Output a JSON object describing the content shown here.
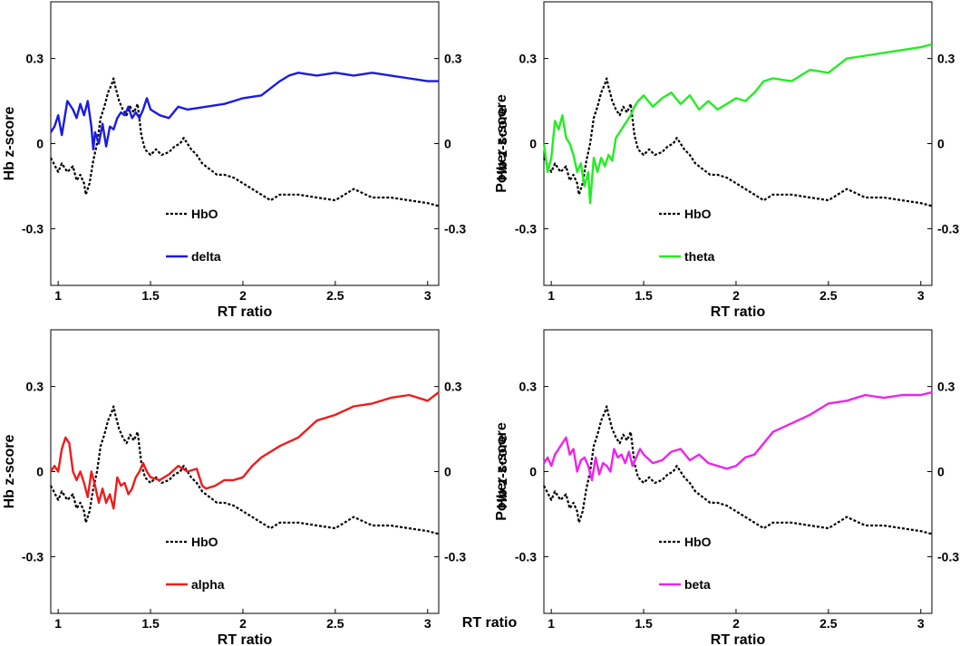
{
  "stray_label": "RT ratio",
  "chart_data": [
    {
      "type": "line",
      "xlabel": "RT ratio",
      "ylabel_left": "Hb z-score",
      "ylabel_right": "Power z-score",
      "xlim": [
        0.96,
        3.06
      ],
      "ylim": [
        -0.5,
        0.5
      ],
      "xticks": [
        1,
        1.5,
        2,
        2.5,
        3
      ],
      "yticks": [
        -0.3,
        0,
        0.3
      ],
      "series": [
        {
          "name": "HbO",
          "color": "#000000",
          "dash": true,
          "x": [
            0.96,
            1.0,
            1.02,
            1.05,
            1.08,
            1.1,
            1.12,
            1.14,
            1.15,
            1.17,
            1.19,
            1.21,
            1.23,
            1.25,
            1.27,
            1.29,
            1.3,
            1.31,
            1.33,
            1.35,
            1.37,
            1.39,
            1.41,
            1.43,
            1.45,
            1.47,
            1.5,
            1.53,
            1.56,
            1.6,
            1.63,
            1.66,
            1.68,
            1.7,
            1.72,
            1.75,
            1.78,
            1.82,
            1.86,
            1.9,
            1.95,
            2.0,
            2.05,
            2.1,
            2.15,
            2.2,
            2.3,
            2.4,
            2.5,
            2.6,
            2.7,
            2.8,
            2.9,
            3.0,
            3.06
          ],
          "y": [
            -0.05,
            -0.1,
            -0.07,
            -0.1,
            -0.08,
            -0.13,
            -0.11,
            -0.14,
            -0.18,
            -0.14,
            -0.06,
            0.0,
            0.09,
            0.13,
            0.18,
            0.21,
            0.23,
            0.2,
            0.15,
            0.12,
            0.1,
            0.13,
            0.11,
            0.14,
            0.03,
            -0.02,
            -0.04,
            -0.02,
            -0.04,
            -0.03,
            -0.01,
            0.0,
            0.02,
            0.0,
            -0.02,
            -0.04,
            -0.07,
            -0.09,
            -0.11,
            -0.11,
            -0.12,
            -0.14,
            -0.16,
            -0.18,
            -0.2,
            -0.18,
            -0.18,
            -0.19,
            -0.2,
            -0.16,
            -0.19,
            -0.19,
            -0.2,
            -0.21,
            -0.22
          ]
        },
        {
          "name": "delta",
          "color": "#1a1ae6",
          "dash": false,
          "x": [
            0.96,
            0.98,
            1.0,
            1.02,
            1.05,
            1.08,
            1.1,
            1.12,
            1.14,
            1.16,
            1.18,
            1.19,
            1.2,
            1.22,
            1.24,
            1.26,
            1.28,
            1.3,
            1.32,
            1.34,
            1.36,
            1.38,
            1.4,
            1.42,
            1.44,
            1.46,
            1.48,
            1.5,
            1.55,
            1.6,
            1.65,
            1.7,
            1.8,
            1.9,
            2.0,
            2.1,
            2.2,
            2.25,
            2.3,
            2.4,
            2.5,
            2.6,
            2.7,
            2.8,
            2.9,
            3.0,
            3.06
          ],
          "y": [
            0.04,
            0.06,
            0.1,
            0.03,
            0.15,
            0.12,
            0.09,
            0.14,
            0.1,
            0.15,
            0.06,
            -0.02,
            0.04,
            0.0,
            0.07,
            -0.01,
            0.06,
            0.05,
            0.09,
            0.11,
            0.1,
            0.13,
            0.09,
            0.11,
            0.09,
            0.12,
            0.16,
            0.12,
            0.1,
            0.09,
            0.13,
            0.12,
            0.13,
            0.14,
            0.16,
            0.17,
            0.22,
            0.24,
            0.25,
            0.24,
            0.25,
            0.24,
            0.25,
            0.24,
            0.23,
            0.22,
            0.22
          ]
        }
      ]
    },
    {
      "type": "line",
      "xlabel": "RT ratio",
      "ylabel_left": "Hb z-score",
      "ylabel_right": "Power z-score",
      "xlim": [
        0.96,
        3.06
      ],
      "ylim": [
        -0.5,
        0.5
      ],
      "xticks": [
        1,
        1.5,
        2,
        2.5,
        3
      ],
      "yticks": [
        -0.3,
        0,
        0.3
      ],
      "series": [
        {
          "name": "HbO",
          "color": "#000000",
          "dash": true,
          "x": [
            0.96,
            1.0,
            1.02,
            1.05,
            1.08,
            1.1,
            1.12,
            1.14,
            1.15,
            1.17,
            1.19,
            1.21,
            1.23,
            1.25,
            1.27,
            1.29,
            1.3,
            1.31,
            1.33,
            1.35,
            1.37,
            1.39,
            1.41,
            1.43,
            1.45,
            1.47,
            1.5,
            1.53,
            1.56,
            1.6,
            1.63,
            1.66,
            1.68,
            1.7,
            1.72,
            1.75,
            1.78,
            1.82,
            1.86,
            1.9,
            1.95,
            2.0,
            2.05,
            2.1,
            2.15,
            2.2,
            2.3,
            2.4,
            2.5,
            2.6,
            2.7,
            2.8,
            2.9,
            3.0,
            3.06
          ],
          "y": [
            -0.05,
            -0.1,
            -0.07,
            -0.1,
            -0.08,
            -0.13,
            -0.11,
            -0.14,
            -0.18,
            -0.14,
            -0.06,
            0.0,
            0.09,
            0.13,
            0.18,
            0.21,
            0.23,
            0.2,
            0.15,
            0.12,
            0.1,
            0.13,
            0.11,
            0.14,
            0.03,
            -0.02,
            -0.04,
            -0.02,
            -0.04,
            -0.03,
            -0.01,
            0.0,
            0.02,
            0.0,
            -0.02,
            -0.04,
            -0.07,
            -0.09,
            -0.11,
            -0.11,
            -0.12,
            -0.14,
            -0.16,
            -0.18,
            -0.2,
            -0.18,
            -0.18,
            -0.19,
            -0.2,
            -0.16,
            -0.19,
            -0.19,
            -0.2,
            -0.21,
            -0.22
          ]
        },
        {
          "name": "theta",
          "color": "#22ee22",
          "dash": false,
          "x": [
            0.96,
            0.98,
            1.0,
            1.02,
            1.04,
            1.06,
            1.08,
            1.1,
            1.12,
            1.14,
            1.16,
            1.18,
            1.2,
            1.21,
            1.23,
            1.25,
            1.27,
            1.29,
            1.31,
            1.33,
            1.35,
            1.37,
            1.39,
            1.41,
            1.43,
            1.45,
            1.47,
            1.5,
            1.55,
            1.6,
            1.65,
            1.7,
            1.75,
            1.8,
            1.85,
            1.9,
            1.95,
            2.0,
            2.05,
            2.1,
            2.15,
            2.2,
            2.3,
            2.4,
            2.5,
            2.6,
            2.7,
            2.8,
            2.9,
            3.0,
            3.06
          ],
          "y": [
            0.0,
            -0.1,
            -0.05,
            0.08,
            0.05,
            0.1,
            0.02,
            0.0,
            -0.04,
            -0.1,
            -0.07,
            -0.15,
            -0.1,
            -0.21,
            -0.05,
            -0.1,
            -0.05,
            -0.08,
            -0.04,
            -0.06,
            0.02,
            0.04,
            0.06,
            0.08,
            0.1,
            0.13,
            0.15,
            0.17,
            0.13,
            0.16,
            0.18,
            0.14,
            0.17,
            0.12,
            0.15,
            0.12,
            0.14,
            0.16,
            0.15,
            0.18,
            0.22,
            0.23,
            0.22,
            0.26,
            0.25,
            0.3,
            0.31,
            0.32,
            0.33,
            0.34,
            0.35
          ]
        }
      ]
    },
    {
      "type": "line",
      "xlabel": "RT ratio",
      "ylabel_left": "Hb z-score",
      "ylabel_right": "Power z-score",
      "xlim": [
        0.96,
        3.06
      ],
      "ylim": [
        -0.5,
        0.5
      ],
      "xticks": [
        1,
        1.5,
        2,
        2.5,
        3
      ],
      "yticks": [
        -0.3,
        0,
        0.3
      ],
      "series": [
        {
          "name": "HbO",
          "color": "#000000",
          "dash": true,
          "x": [
            0.96,
            1.0,
            1.02,
            1.05,
            1.08,
            1.1,
            1.12,
            1.14,
            1.15,
            1.17,
            1.19,
            1.21,
            1.23,
            1.25,
            1.27,
            1.29,
            1.3,
            1.31,
            1.33,
            1.35,
            1.37,
            1.39,
            1.41,
            1.43,
            1.45,
            1.47,
            1.5,
            1.53,
            1.56,
            1.6,
            1.63,
            1.66,
            1.68,
            1.7,
            1.72,
            1.75,
            1.78,
            1.82,
            1.86,
            1.9,
            1.95,
            2.0,
            2.05,
            2.1,
            2.15,
            2.2,
            2.3,
            2.4,
            2.5,
            2.6,
            2.7,
            2.8,
            2.9,
            3.0,
            3.06
          ],
          "y": [
            -0.05,
            -0.1,
            -0.07,
            -0.1,
            -0.08,
            -0.13,
            -0.11,
            -0.14,
            -0.18,
            -0.14,
            -0.06,
            0.0,
            0.09,
            0.13,
            0.18,
            0.21,
            0.23,
            0.2,
            0.15,
            0.12,
            0.1,
            0.13,
            0.11,
            0.14,
            0.03,
            -0.02,
            -0.04,
            -0.02,
            -0.04,
            -0.03,
            -0.01,
            0.0,
            0.02,
            0.0,
            -0.02,
            -0.04,
            -0.07,
            -0.09,
            -0.11,
            -0.11,
            -0.12,
            -0.14,
            -0.16,
            -0.18,
            -0.2,
            -0.18,
            -0.18,
            -0.19,
            -0.2,
            -0.16,
            -0.19,
            -0.19,
            -0.2,
            -0.21,
            -0.22
          ]
        },
        {
          "name": "alpha",
          "color": "#ee1c1c",
          "dash": false,
          "x": [
            0.96,
            0.98,
            1.0,
            1.02,
            1.04,
            1.06,
            1.08,
            1.1,
            1.12,
            1.14,
            1.16,
            1.18,
            1.2,
            1.22,
            1.24,
            1.26,
            1.28,
            1.3,
            1.32,
            1.34,
            1.36,
            1.38,
            1.4,
            1.42,
            1.44,
            1.46,
            1.48,
            1.5,
            1.55,
            1.6,
            1.65,
            1.7,
            1.75,
            1.78,
            1.8,
            1.85,
            1.9,
            1.95,
            2.0,
            2.05,
            2.1,
            2.2,
            2.3,
            2.4,
            2.5,
            2.6,
            2.7,
            2.8,
            2.9,
            3.0,
            3.06
          ],
          "y": [
            0.0,
            0.02,
            0.0,
            0.08,
            0.12,
            0.1,
            0.0,
            -0.03,
            0.0,
            -0.04,
            -0.09,
            0.0,
            -0.05,
            -0.11,
            -0.06,
            -0.11,
            -0.08,
            -0.13,
            -0.02,
            -0.05,
            -0.04,
            -0.08,
            -0.06,
            -0.02,
            0.0,
            0.03,
            0.0,
            -0.02,
            -0.03,
            -0.01,
            0.02,
            0.0,
            0.01,
            -0.05,
            -0.06,
            -0.05,
            -0.03,
            -0.03,
            -0.02,
            0.02,
            0.05,
            0.09,
            0.12,
            0.18,
            0.2,
            0.23,
            0.24,
            0.26,
            0.27,
            0.25,
            0.28
          ]
        }
      ]
    },
    {
      "type": "line",
      "xlabel": "RT ratio",
      "ylabel_left": "Hb z-score",
      "ylabel_right": "Power z-score",
      "xlim": [
        0.96,
        3.06
      ],
      "ylim": [
        -0.5,
        0.5
      ],
      "xticks": [
        1,
        1.5,
        2,
        2.5,
        3
      ],
      "yticks": [
        -0.3,
        0,
        0.3
      ],
      "series": [
        {
          "name": "HbO",
          "color": "#000000",
          "dash": true,
          "x": [
            0.96,
            1.0,
            1.02,
            1.05,
            1.08,
            1.1,
            1.12,
            1.14,
            1.15,
            1.17,
            1.19,
            1.21,
            1.23,
            1.25,
            1.27,
            1.29,
            1.3,
            1.31,
            1.33,
            1.35,
            1.37,
            1.39,
            1.41,
            1.43,
            1.45,
            1.47,
            1.5,
            1.53,
            1.56,
            1.6,
            1.63,
            1.66,
            1.68,
            1.7,
            1.72,
            1.75,
            1.78,
            1.82,
            1.86,
            1.9,
            1.95,
            2.0,
            2.05,
            2.1,
            2.15,
            2.2,
            2.3,
            2.4,
            2.5,
            2.6,
            2.7,
            2.8,
            2.9,
            3.0,
            3.06
          ],
          "y": [
            -0.05,
            -0.1,
            -0.07,
            -0.1,
            -0.08,
            -0.13,
            -0.11,
            -0.14,
            -0.18,
            -0.14,
            -0.06,
            0.0,
            0.09,
            0.13,
            0.18,
            0.21,
            0.23,
            0.2,
            0.15,
            0.12,
            0.1,
            0.13,
            0.11,
            0.14,
            0.03,
            -0.02,
            -0.04,
            -0.02,
            -0.04,
            -0.03,
            -0.01,
            0.0,
            0.02,
            0.0,
            -0.02,
            -0.04,
            -0.07,
            -0.09,
            -0.11,
            -0.11,
            -0.12,
            -0.14,
            -0.16,
            -0.18,
            -0.2,
            -0.18,
            -0.18,
            -0.19,
            -0.2,
            -0.16,
            -0.19,
            -0.19,
            -0.2,
            -0.21,
            -0.22
          ]
        },
        {
          "name": "beta",
          "color": "#ee22ee",
          "dash": false,
          "x": [
            0.96,
            0.98,
            1.0,
            1.02,
            1.04,
            1.06,
            1.08,
            1.1,
            1.12,
            1.14,
            1.16,
            1.18,
            1.2,
            1.22,
            1.24,
            1.26,
            1.28,
            1.3,
            1.32,
            1.34,
            1.36,
            1.38,
            1.4,
            1.42,
            1.44,
            1.46,
            1.48,
            1.5,
            1.55,
            1.6,
            1.65,
            1.7,
            1.75,
            1.8,
            1.85,
            1.9,
            1.95,
            2.0,
            2.05,
            2.1,
            2.15,
            2.2,
            2.3,
            2.4,
            2.5,
            2.6,
            2.7,
            2.8,
            2.9,
            3.0,
            3.06
          ],
          "y": [
            0.03,
            0.05,
            0.02,
            0.06,
            0.08,
            0.1,
            0.12,
            0.06,
            0.08,
            0.0,
            0.04,
            0.05,
            0.02,
            -0.03,
            0.05,
            -0.01,
            0.03,
            0.02,
            0.0,
            0.08,
            0.05,
            0.06,
            0.03,
            0.07,
            0.02,
            0.05,
            0.08,
            0.06,
            0.03,
            0.04,
            0.07,
            0.08,
            0.04,
            0.06,
            0.03,
            0.02,
            0.01,
            0.02,
            0.05,
            0.06,
            0.1,
            0.14,
            0.17,
            0.2,
            0.24,
            0.25,
            0.27,
            0.26,
            0.27,
            0.27,
            0.28
          ]
        }
      ]
    }
  ]
}
